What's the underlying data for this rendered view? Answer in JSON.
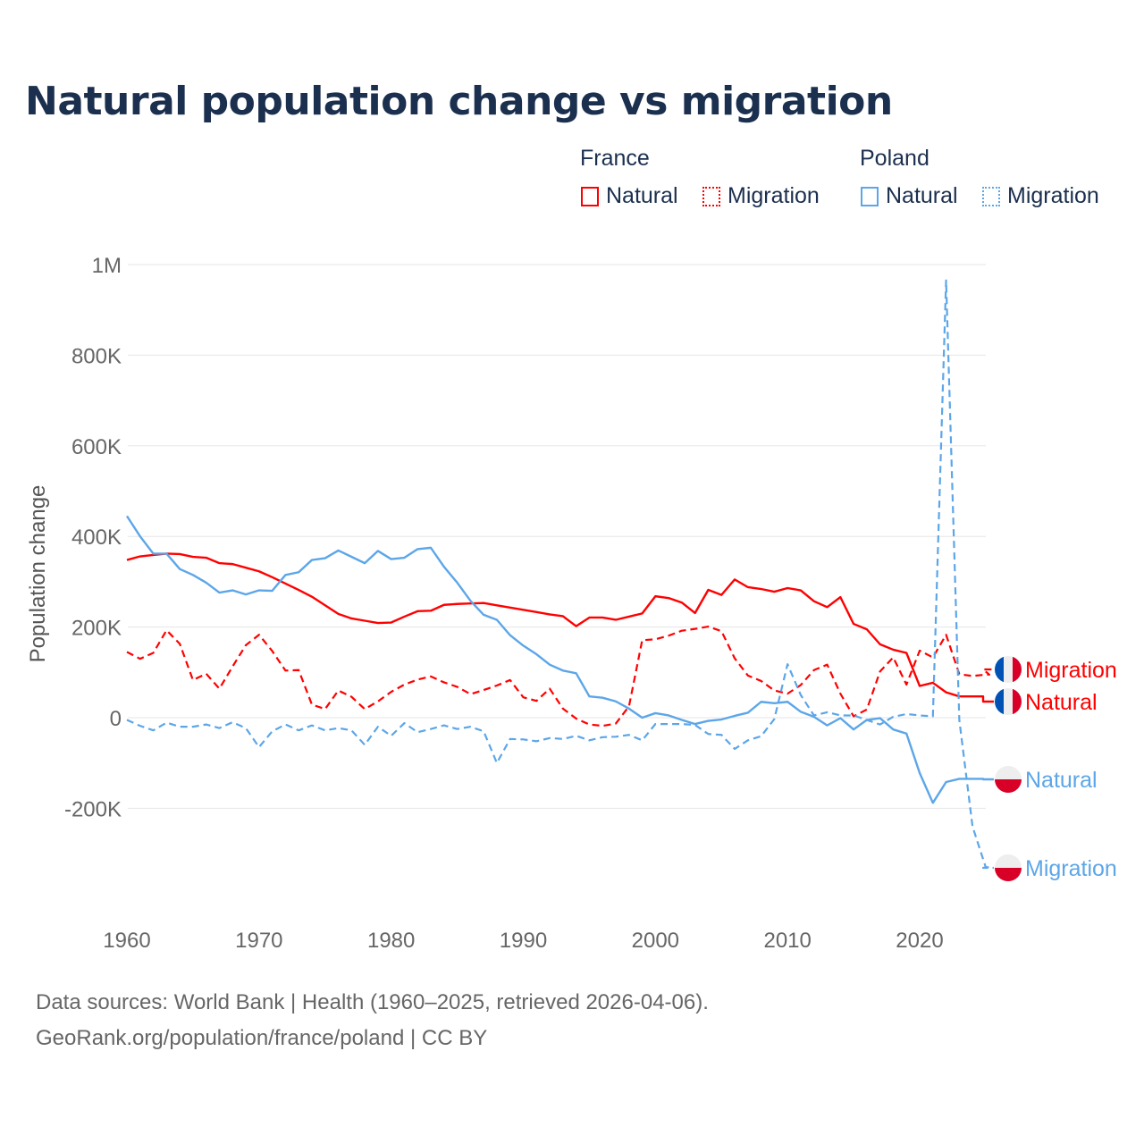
{
  "title": "Natural population change vs migration",
  "legend": {
    "groups": [
      {
        "name": "France",
        "items": [
          "Natural",
          "Migration"
        ],
        "color": "#ff0000"
      },
      {
        "name": "Poland",
        "items": [
          "Natural",
          "Migration"
        ],
        "color": "#5ca6e8"
      }
    ]
  },
  "footer": {
    "line1": "Data sources: World Bank | Health (1960–2025, retrieved 2026-04-06).",
    "line2": "GeoRank.org/population/france/poland | CC BY"
  },
  "chart_data": {
    "type": "line",
    "title": "Natural population change vs migration",
    "xlabel": "",
    "ylabel": "Population change",
    "xlim": [
      1960,
      2025
    ],
    "ylim": [
      -400000,
      1000000
    ],
    "x_ticks": [
      1960,
      1970,
      1980,
      1990,
      2000,
      2010,
      2020
    ],
    "x_tick_labels": [
      "1960",
      "1970",
      "1980",
      "1990",
      "2000",
      "2010",
      "2020"
    ],
    "y_ticks": [
      -200000,
      0,
      200000,
      400000,
      600000,
      800000,
      1000000
    ],
    "y_tick_labels": [
      "-200K",
      "0",
      "200K",
      "400K",
      "600K",
      "800K",
      "1M"
    ],
    "grid": true,
    "legend_position": "top-right",
    "series": [
      {
        "name": "France Natural",
        "label": "Natural",
        "country": "France",
        "style": "solid",
        "color": "#ff0000",
        "start": 1960,
        "values": [
          348,
          356,
          359,
          362,
          361,
          355,
          353,
          341,
          339,
          331,
          323,
          310,
          296,
          282,
          267,
          248,
          229,
          219,
          214,
          209,
          210,
          223,
          235,
          236,
          249,
          251,
          252,
          253,
          248,
          243,
          238,
          233,
          228,
          224,
          202,
          221,
          221,
          216,
          223,
          230,
          268,
          264,
          254,
          231,
          282,
          271,
          305,
          288,
          284,
          278,
          286,
          281,
          257,
          244,
          266,
          207,
          195,
          162,
          150,
          143,
          70,
          77,
          56,
          47
        ]
      },
      {
        "name": "France Migration",
        "label": "Migration",
        "country": "France",
        "style": "dashed",
        "color": "#ff0000",
        "start": 1960,
        "values": [
          145,
          130,
          143,
          193,
          163,
          83,
          97,
          64,
          113,
          160,
          183,
          147,
          104,
          105,
          29,
          19,
          60,
          46,
          19,
          36,
          57,
          73,
          84,
          91,
          78,
          68,
          52,
          61,
          71,
          83,
          45,
          37,
          64,
          20,
          -2,
          -15,
          -18,
          -13,
          25,
          171,
          173,
          181,
          192,
          196,
          201,
          191,
          131,
          93,
          81,
          60,
          53,
          72,
          105,
          117,
          53,
          3,
          18,
          102,
          133,
          73,
          148,
          133,
          183,
          96,
          92,
          95
        ]
      },
      {
        "name": "Poland Natural",
        "label": "Natural",
        "country": "Poland",
        "style": "solid",
        "color": "#5ca6e8",
        "start": 1960,
        "values": [
          445,
          400,
          362,
          362,
          328,
          315,
          298,
          276,
          281,
          272,
          281,
          280,
          315,
          321,
          348,
          352,
          369,
          355,
          341,
          368,
          350,
          353,
          372,
          375,
          333,
          298,
          258,
          227,
          216,
          182,
          159,
          140,
          117,
          104,
          98,
          47,
          44,
          36,
          20,
          0,
          10,
          5,
          -5,
          -14,
          -7,
          -4,
          4,
          11,
          35,
          32,
          35,
          13,
          2,
          -17,
          -1,
          -26,
          -5,
          -1,
          -26,
          -35,
          -122,
          -188,
          -142,
          -135
        ]
      },
      {
        "name": "Poland Migration",
        "label": "Migration",
        "country": "Poland",
        "style": "dashed",
        "color": "#5ca6e8",
        "start": 1960,
        "values": [
          -5,
          -18,
          -28,
          -11,
          -20,
          -20,
          -15,
          -23,
          -10,
          -23,
          -65,
          -30,
          -15,
          -28,
          -17,
          -28,
          -23,
          -28,
          -60,
          -20,
          -40,
          -12,
          -32,
          -25,
          -17,
          -25,
          -20,
          -30,
          -100,
          -47,
          -48,
          -52,
          -45,
          -47,
          -40,
          -50,
          -43,
          -42,
          -38,
          -50,
          -14,
          -14,
          -14,
          -16,
          -36,
          -38,
          -69,
          -50,
          -41,
          -3,
          118,
          50,
          5,
          12,
          5,
          5,
          -5,
          -15,
          2,
          8,
          5,
          3,
          965,
          -5,
          -240,
          -330
        ]
      }
    ],
    "value_unit": "thousands"
  }
}
